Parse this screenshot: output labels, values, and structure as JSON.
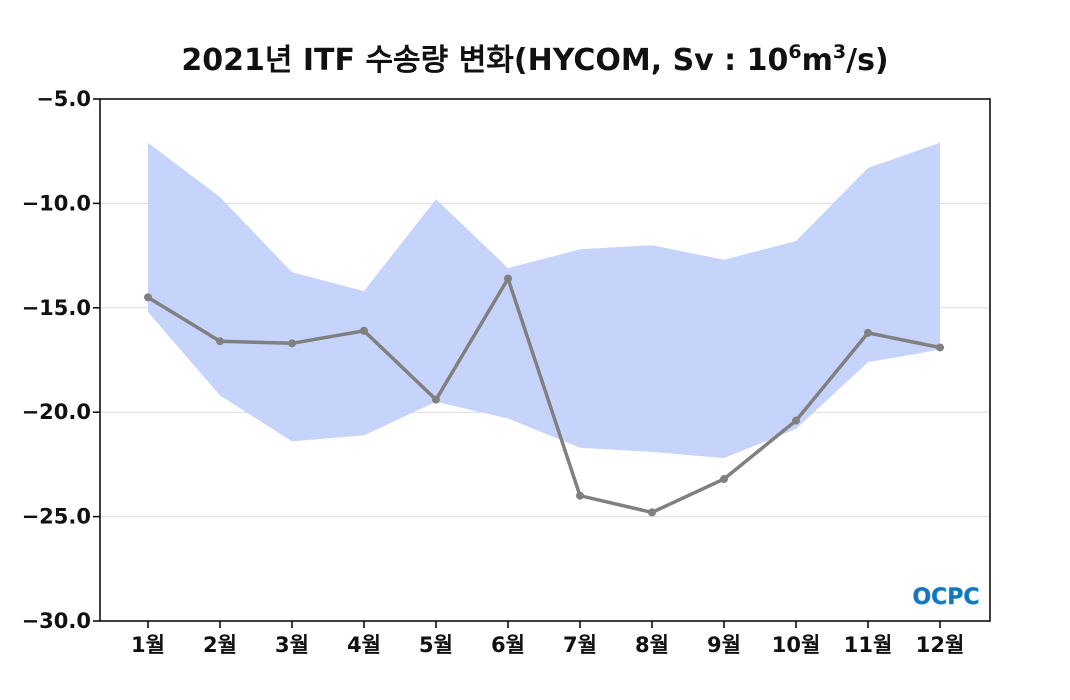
{
  "chart_data": {
    "type": "line",
    "title": "2021년 ITF 수송량 변화(HYCOM, Sv : 10⁶m³/s)",
    "title_parts": {
      "main": "2021년 ITF 수송량 변화(HYCOM, Sv : 10",
      "exp1": "6",
      "mid": "m",
      "exp2": "3",
      "end": "/s)"
    },
    "xlabel": "",
    "ylabel": "",
    "categories": [
      "1월",
      "2월",
      "3월",
      "4월",
      "5월",
      "6월",
      "7월",
      "8월",
      "9월",
      "10월",
      "11월",
      "12월"
    ],
    "ylim": [
      -30.0,
      -5.0
    ],
    "yticks": [
      -30.0,
      -25.0,
      -20.0,
      -15.0,
      -10.0,
      -5.0
    ],
    "ytick_labels": [
      "−30.0",
      "−25.0",
      "−20.0",
      "−15.0",
      "−10.0",
      "−5.0"
    ],
    "grid": "horizontal",
    "series": [
      {
        "type": "line",
        "values": [
          -14.5,
          -16.6,
          -16.7,
          -16.1,
          -19.4,
          -13.6,
          -24.0,
          -24.8,
          -23.2,
          -20.4,
          -16.2,
          -16.9
        ],
        "color": "#808080"
      },
      {
        "type": "range",
        "upper": [
          -7.1,
          -9.7,
          -13.3,
          -14.2,
          -9.8,
          -13.1,
          -12.2,
          -12.0,
          -12.7,
          -11.8,
          -8.3,
          -7.1
        ],
        "lower": [
          -15.2,
          -19.2,
          -21.4,
          -21.1,
          -19.5,
          -20.3,
          -21.7,
          -21.9,
          -22.2,
          -20.8,
          -17.6,
          -17.0
        ],
        "color": "#c6d3fb"
      }
    ],
    "logo": {
      "text": "OCPC",
      "colors": [
        "#1a73b8",
        "#2a9fd8"
      ]
    }
  }
}
